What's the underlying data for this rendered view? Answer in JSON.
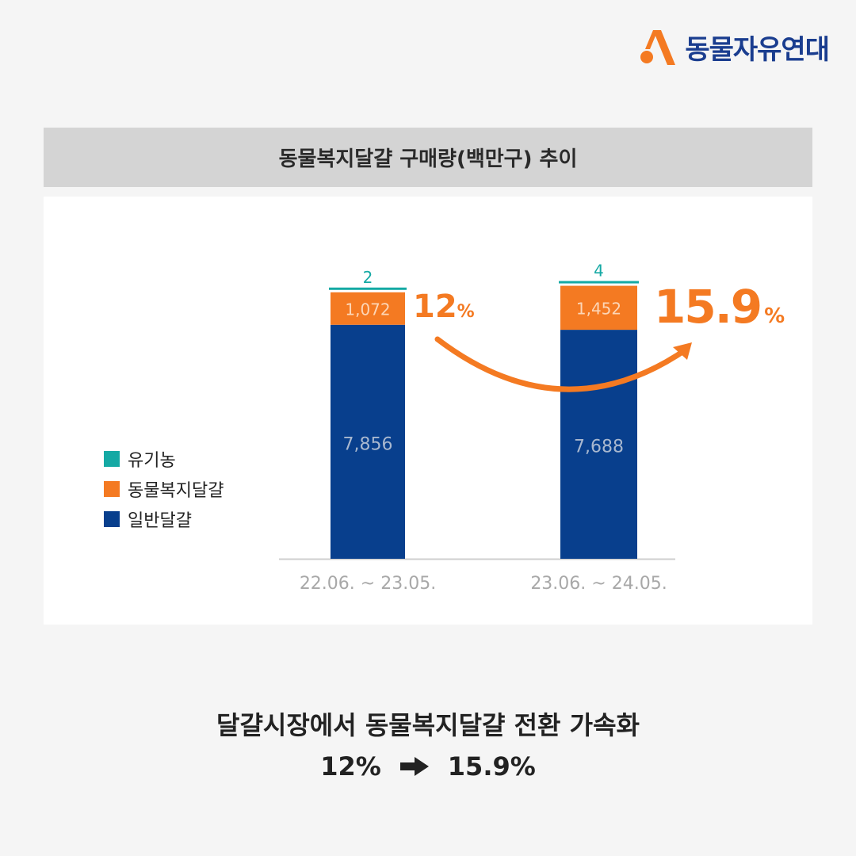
{
  "brand": {
    "name": "동물자유연대"
  },
  "colors": {
    "organic": "#15a9a4",
    "welfare": "#f47a22",
    "general": "#083f8d",
    "brand_blue": "#1a3d8f"
  },
  "title": "동물복지달걀 구매량(백만구) 추이",
  "legend": [
    {
      "key": "organic",
      "label": "유기농"
    },
    {
      "key": "welfare",
      "label": "동물복지달걀"
    },
    {
      "key": "general",
      "label": "일반달걀"
    }
  ],
  "chart_data": {
    "type": "bar",
    "stacked": true,
    "categories": [
      "22.06. ~ 23.05.",
      "23.06. ~ 24.05."
    ],
    "series": [
      {
        "name": "일반달걀",
        "values": [
          7856,
          7688
        ],
        "labels": [
          "7,856",
          "7,688"
        ]
      },
      {
        "name": "동물복지달걀",
        "values": [
          1072,
          1452
        ],
        "labels": [
          "1,072",
          "1,452"
        ]
      },
      {
        "name": "유기농",
        "values": [
          2,
          4
        ],
        "labels": [
          "2",
          "4"
        ]
      }
    ],
    "share_labels": [
      {
        "number": "12",
        "unit": "%"
      },
      {
        "number": "15.9",
        "unit": "%"
      }
    ],
    "legend_position": "left"
  },
  "caption": {
    "line1": "달걀시장에서 동물복지달걀 전환 가속화",
    "from": "12%",
    "to": "15.9%"
  }
}
